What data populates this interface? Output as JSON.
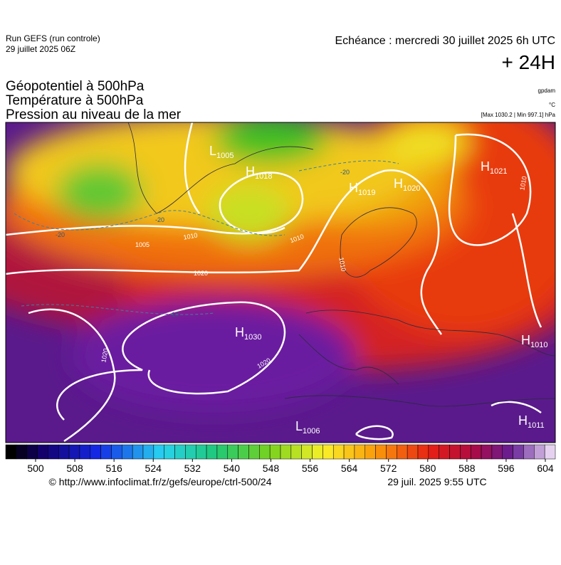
{
  "header": {
    "run": "Run GEFS (run controle)",
    "date": "29 juillet 2025 06Z",
    "valid": "Echéance : mercredi 30 juillet 2025 6h UTC",
    "lead": "+ 24H"
  },
  "titles": [
    "Géopotentiel à 500hPa",
    "Température à 500hPa",
    "Pression au niveau de la mer"
  ],
  "units": {
    "geopotential": "gpdam",
    "temperature": "°C",
    "pressure_range": "[Max 1030.2 | Min 997.1] hPa"
  },
  "map": {
    "centers": [
      {
        "kind": "H",
        "value": "1030"
      },
      {
        "kind": "L",
        "value": "1006"
      },
      {
        "kind": "H",
        "value": "1011"
      },
      {
        "kind": "H",
        "value": "1010"
      },
      {
        "kind": "H",
        "value": "1021"
      },
      {
        "kind": "H",
        "value": "1020"
      },
      {
        "kind": "H",
        "value": "1019"
      },
      {
        "kind": "L",
        "value": "1005"
      },
      {
        "kind": "H",
        "value": "1018"
      }
    ],
    "isobar_labels": [
      "1020",
      "1020",
      "1020",
      "1010",
      "1005",
      "1010",
      "1010",
      "1010"
    ],
    "temperature_labels": [
      "-20",
      "-20",
      "-20",
      "-10"
    ]
  },
  "colorbar": {
    "ticks": [
      500,
      508,
      516,
      524,
      532,
      540,
      548,
      556,
      564,
      572,
      580,
      588,
      596,
      604
    ]
  },
  "footer": {
    "url": "© http://www.infoclimat.fr/z/gefs/europe/ctrl-500/24",
    "stamp": "29 juil. 2025  9:55 UTC"
  }
}
